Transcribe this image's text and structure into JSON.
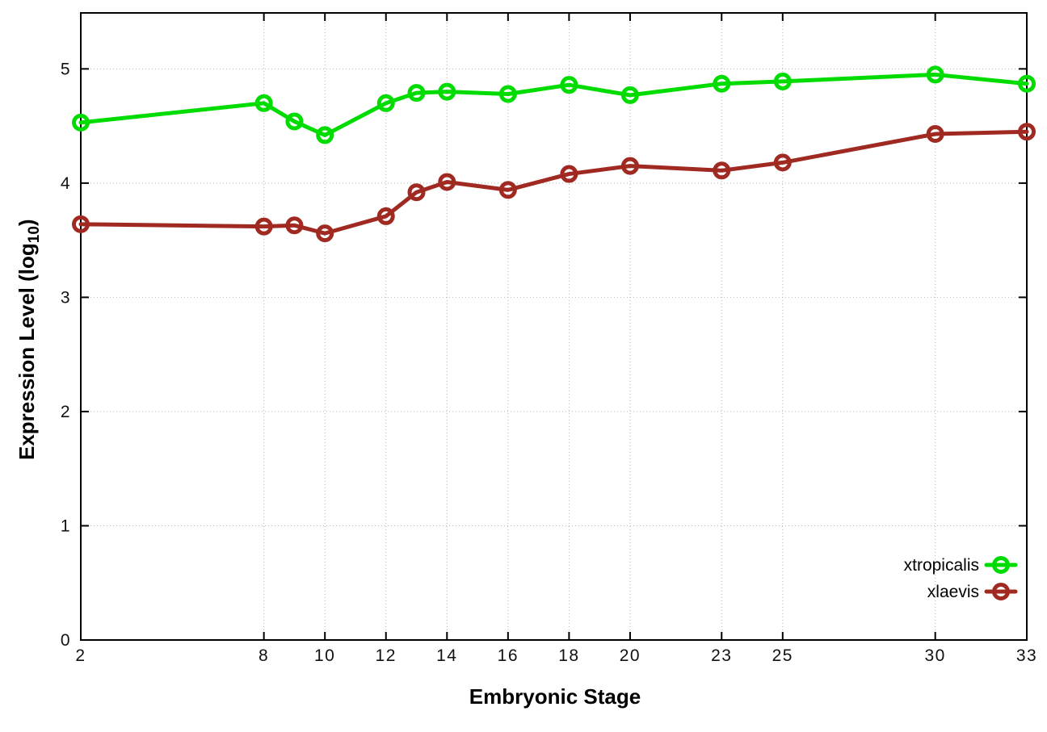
{
  "chart_data": {
    "type": "line",
    "title": "",
    "xlabel": "Embryonic Stage",
    "ylabel": {
      "main": "Expression Level (log",
      "sub": "10",
      "suffix": ")"
    },
    "xlim": [
      2,
      33
    ],
    "ylim": [
      0,
      5.49
    ],
    "xticks": [
      2,
      8,
      10,
      12,
      14,
      16,
      18,
      20,
      23,
      25,
      30,
      33
    ],
    "yticks": [
      0,
      1,
      2,
      3,
      4,
      5
    ],
    "grid": true,
    "grid_style": "dotted",
    "legend_position": "inside-bottom-right",
    "x": [
      2,
      8,
      9,
      10,
      12,
      13,
      14,
      16,
      18,
      20,
      23,
      25,
      30,
      33
    ],
    "series": [
      {
        "name": "xtropicalis",
        "color": "#00dc00",
        "marker": "open-circle",
        "values": [
          4.53,
          4.7,
          4.54,
          4.42,
          4.7,
          4.79,
          4.8,
          4.78,
          4.86,
          4.77,
          4.87,
          4.89,
          4.95,
          4.87
        ]
      },
      {
        "name": "xlaevis",
        "color": "#a02a22",
        "marker": "open-circle",
        "values": [
          3.64,
          3.62,
          3.63,
          3.56,
          3.71,
          3.92,
          4.01,
          3.94,
          4.08,
          4.15,
          4.11,
          4.18,
          4.43,
          4.45
        ]
      }
    ],
    "colors": {
      "axis": "#000000",
      "grid": "#b5b5b5",
      "tick_label": "#111111",
      "background": "#ffffff"
    }
  }
}
